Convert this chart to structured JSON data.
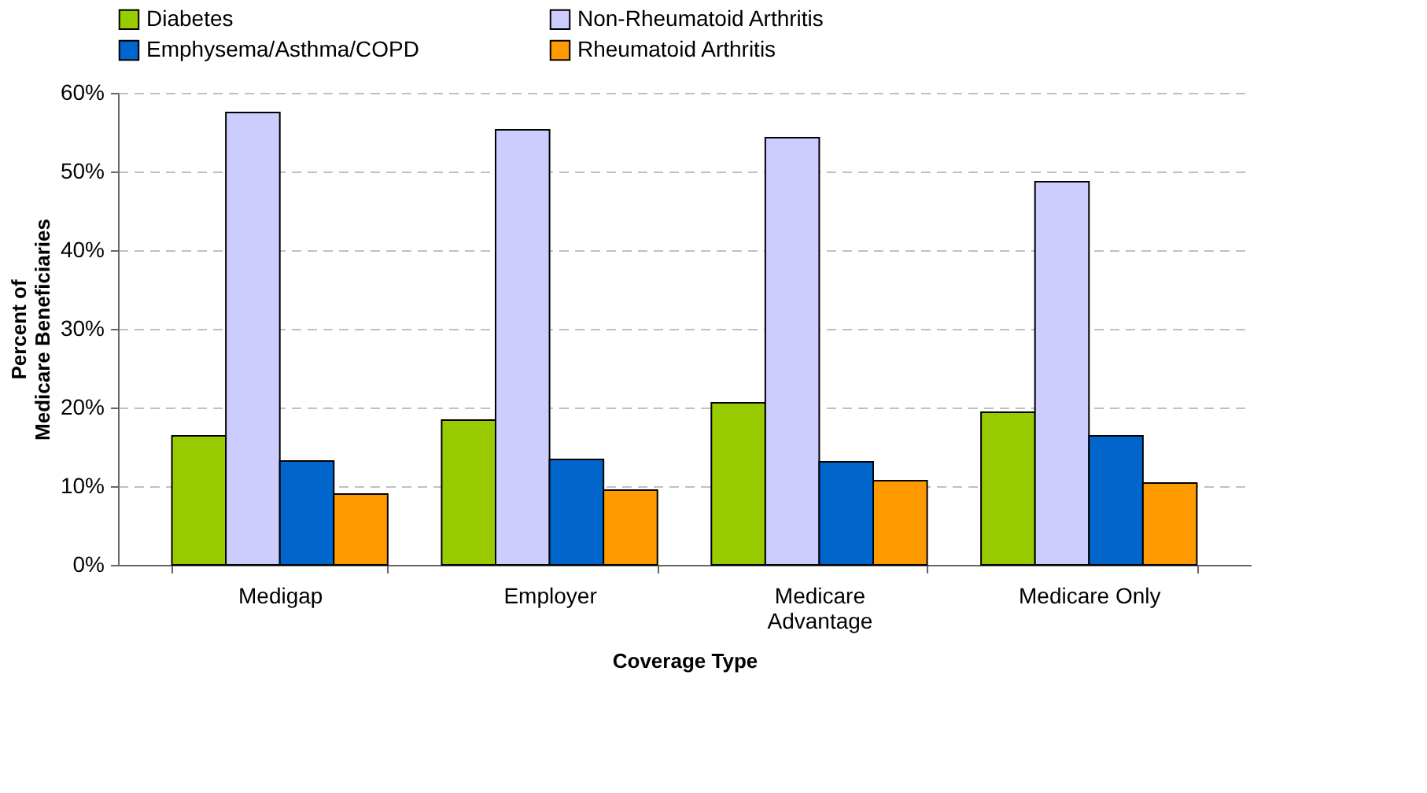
{
  "chart_data": {
    "type": "bar",
    "xlabel": "Coverage Type",
    "ylabel": "Percent of Medicare Beneficiaries",
    "categories": [
      "Medigap",
      "Employer",
      "Medicare Advantage",
      "Medicare Only"
    ],
    "series": [
      {
        "name": "Diabetes",
        "color": "#99cc00",
        "values": [
          16.4,
          18.4,
          20.6,
          19.4
        ]
      },
      {
        "name": "Non-Rheumatoid Arthritis",
        "color": "#ccccff",
        "values": [
          57.5,
          55.3,
          54.3,
          48.7
        ]
      },
      {
        "name": "Emphysema/Asthma/COPD",
        "color": "#0066cc",
        "values": [
          13.2,
          13.4,
          13.1,
          16.4
        ]
      },
      {
        "name": "Rheumatoid Arthritis",
        "color": "#ff9900",
        "values": [
          9.0,
          9.5,
          10.7,
          10.4
        ]
      }
    ],
    "ylim": [
      0,
      60
    ],
    "yticks": [
      {
        "value": 0,
        "label": "0%"
      },
      {
        "value": 10,
        "label": "10%"
      },
      {
        "value": 20,
        "label": "20%"
      },
      {
        "value": 30,
        "label": "30%"
      },
      {
        "value": 40,
        "label": "40%"
      },
      {
        "value": 50,
        "label": "50%"
      },
      {
        "value": 60,
        "label": "60%"
      }
    ],
    "grid": "y",
    "legend": "top"
  }
}
